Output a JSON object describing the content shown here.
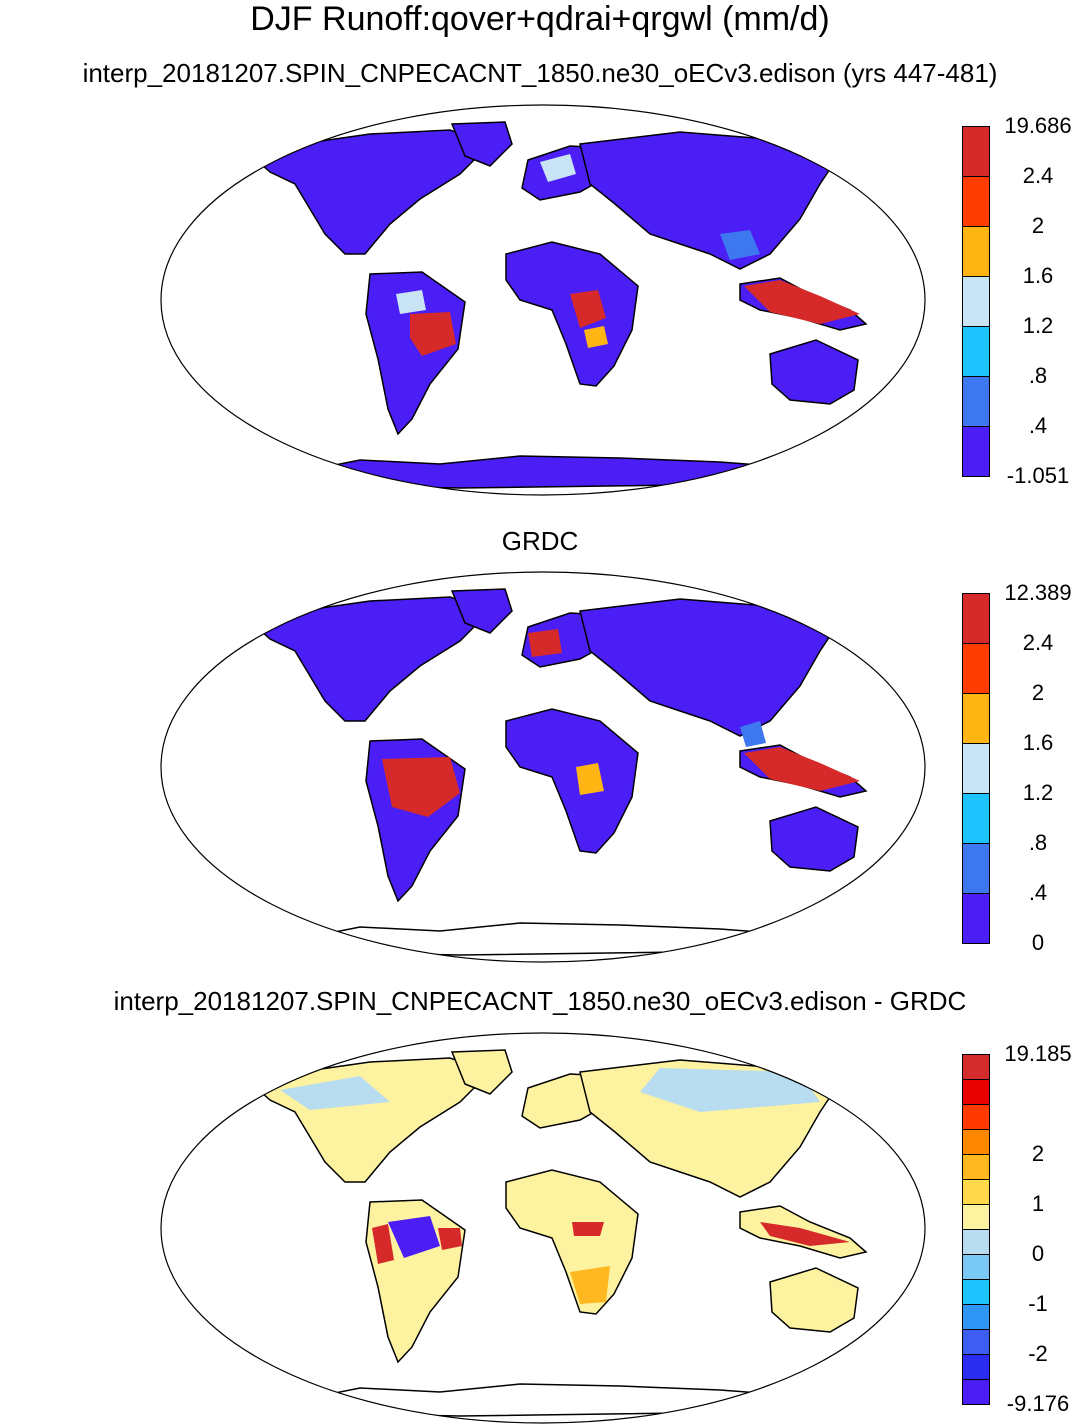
{
  "titles": {
    "main": "DJF Runoff:qover+qdrai+qrgwl (mm/d)",
    "panel1": "interp_20181207.SPIN_CNPECACNT_1850.ne30_oECv3.edison (yrs 447-481)",
    "panel2": "GRDC",
    "panel3": "interp_20181207.SPIN_CNPECACNT_1850.ne30_oECv3.edison - GRDC"
  },
  "colorbars": [
    {
      "id": "cbar1",
      "labels": [
        "19.686",
        "2.4",
        "2",
        "1.6",
        "1.2",
        ".8",
        ".4",
        "-1.051"
      ],
      "colors": [
        "#d62a2a",
        "#ff3d00",
        "#ffb514",
        "#c8e4f5",
        "#1ec4ff",
        "#3d78f0",
        "#4a1ef5"
      ]
    },
    {
      "id": "cbar2",
      "labels": [
        "12.389",
        "2.4",
        "2",
        "1.6",
        "1.2",
        ".8",
        ".4",
        "0"
      ],
      "colors": [
        "#d62a2a",
        "#ff3d00",
        "#ffb514",
        "#c8e4f5",
        "#1ec4ff",
        "#3d78f0",
        "#4a1ef5"
      ]
    },
    {
      "id": "cbar3",
      "labels": [
        "19.185",
        "",
        "2",
        "1",
        "0",
        "-1",
        "-2",
        "-9.176"
      ],
      "colors": [
        "#d42c2c",
        "#e60000",
        "#ff3a00",
        "#ff8800",
        "#ffb820",
        "#ffd94a",
        "#fdf2a0",
        "#b8dcf0",
        "#7ac8f4",
        "#1ec4ff",
        "#2f96f5",
        "#3d5ef0",
        "#2a2df0",
        "#4a1ef5"
      ]
    }
  ],
  "fills": {
    "panel1": {
      "base": "#4a1ef5",
      "hi": "#d62a2a",
      "mid": "#3d78f0",
      "light": "#c8e4f5",
      "orange": "#ffb514"
    },
    "panel2": {
      "base": "#4a1ef5",
      "hi": "#d62a2a",
      "mid": "#3d78f0",
      "light": "#c8e4f5",
      "orange": "#ffb514"
    },
    "panel3": {
      "base": "#fdf2a0",
      "hi": "#d62a2a",
      "mid": "#4a1ef5",
      "light": "#b8dcf0",
      "orange": "#ffb820"
    }
  }
}
